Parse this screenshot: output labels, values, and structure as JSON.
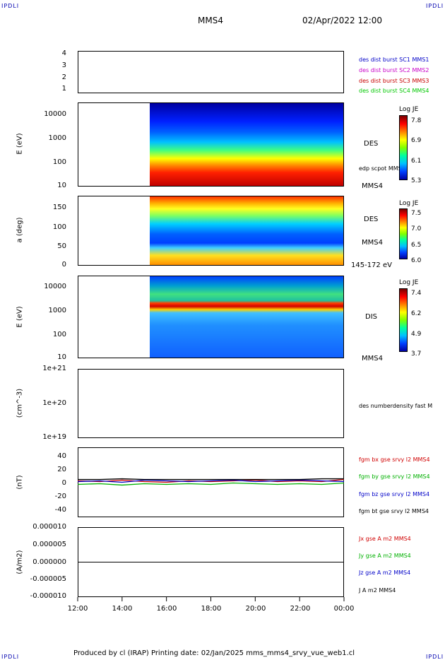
{
  "header": {
    "corner_tl": "IPDLI",
    "corner_tr": "IPDLI",
    "corner_bl": "IPDLI",
    "corner_br": "IPDLI",
    "spacecraft": "MMS4",
    "datetime": "02/Apr/2022 12:00"
  },
  "footer": {
    "text": "Produced by cl (IRAP)   Printing date: 02/Jan/2025   mms_mms4_srvy_vue_web1.cl"
  },
  "colors": {
    "sc1": "#0000c8",
    "sc2": "#c800c8",
    "sc3": "#c80000",
    "sc4": "#00c800",
    "bx": "#d00000",
    "by": "#00b000",
    "bz": "#0000c8",
    "bt": "#000000"
  },
  "chart_data": [
    {
      "type": "scatter",
      "panel": "coverage",
      "yticks": [
        "4",
        "3",
        "2",
        "1"
      ],
      "legend": [
        "des dist burst SC1 MMS1",
        "des dist burst SC2 MMS2",
        "des dist burst SC3 MMS3",
        "des dist burst SC4 MMS4"
      ]
    },
    {
      "type": "heatmap",
      "panel": "des-energy",
      "ylabel": "E (eV)",
      "yticks": [
        "10000",
        "1000",
        "100",
        "10"
      ],
      "ylim": [
        10,
        30000
      ],
      "yscale": "log",
      "label": "DES",
      "overlay": "edp scpot MMS4",
      "sc": "MMS4",
      "colorbar": {
        "title": "Log JE",
        "ticks": [
          "7.8",
          "6.9",
          "6.1",
          "5.3"
        ]
      }
    },
    {
      "type": "heatmap",
      "panel": "des-pitch",
      "ylabel": "a (deg)",
      "yticks": [
        "150",
        "100",
        "50",
        "0"
      ],
      "ylim": [
        0,
        180
      ],
      "label": "DES",
      "sc": "MMS4",
      "range": "145-172 eV",
      "colorbar": {
        "title": "Log JE",
        "ticks": [
          "7.5",
          "7.0",
          "6.5",
          "6.0"
        ]
      }
    },
    {
      "type": "heatmap",
      "panel": "dis-energy",
      "ylabel": "E (eV)",
      "yticks": [
        "10000",
        "1000",
        "100",
        "10"
      ],
      "ylim": [
        10,
        30000
      ],
      "yscale": "log",
      "label": "DIS",
      "sc": "MMS4",
      "colorbar": {
        "title": "Log JE",
        "ticks": [
          "7.4",
          "6.2",
          "4.9",
          "3.7"
        ]
      }
    },
    {
      "type": "line",
      "panel": "density",
      "ylabel": "(cm^-3)",
      "yticks": [
        "1e+21",
        "1e+20",
        "1e+19"
      ],
      "ylim": [
        1e+19,
        1e+21
      ],
      "yscale": "log",
      "legend": [
        "des numberdensity fast M"
      ]
    },
    {
      "type": "line",
      "panel": "bfield",
      "ylabel": "(nT)",
      "yticks": [
        "40",
        "20",
        "0",
        "-20",
        "-40"
      ],
      "ylim": [
        -50,
        50
      ],
      "x": [
        12,
        13,
        14,
        15,
        16,
        17,
        18,
        19,
        20,
        21,
        22,
        23,
        24
      ],
      "series": [
        {
          "name": "fgm bx gse srvy l2 MMS4",
          "values": [
            2,
            1,
            3,
            1,
            0,
            2,
            1,
            2,
            3,
            1,
            2,
            1,
            4
          ]
        },
        {
          "name": "fgm by gse srvy l2 MMS4",
          "values": [
            -3,
            -2,
            -4,
            -2,
            -3,
            -2,
            -3,
            -1,
            -2,
            -3,
            -2,
            -3,
            -1
          ]
        },
        {
          "name": "fgm bz gse srvy l2 MMS4",
          "values": [
            1,
            2,
            0,
            3,
            2,
            1,
            2,
            3,
            1,
            2,
            3,
            2,
            1
          ]
        },
        {
          "name": "fgm bt gse srvy l2 MMS4",
          "values": [
            4,
            4,
            5,
            4,
            4,
            4,
            4,
            4,
            4,
            4,
            4,
            5,
            5
          ]
        }
      ]
    },
    {
      "type": "line",
      "panel": "current",
      "ylabel": "(A/m2)",
      "yticks": [
        "0.000010",
        "0.000005",
        "0.000000",
        "-0.000005",
        "-0.000010"
      ],
      "ylim": [
        -1e-05,
        1e-05
      ],
      "legend": [
        "Jx gse A m2 MMS4",
        "Jy gse A m2 MMS4",
        "Jz gse A m2 MMS4",
        "J A m2 MMS4"
      ]
    }
  ],
  "xaxis": {
    "ticks": [
      "12:00",
      "14:00",
      "16:00",
      "18:00",
      "20:00",
      "22:00",
      "00:00"
    ]
  }
}
